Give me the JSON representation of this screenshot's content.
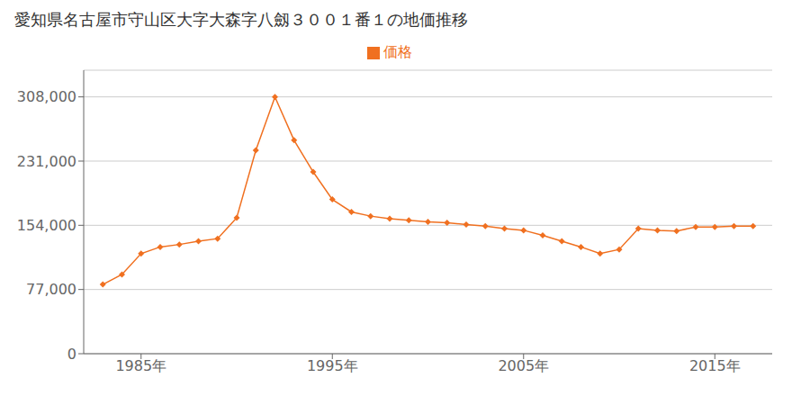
{
  "chart_data": {
    "type": "line",
    "title": "愛知県名古屋市守山区大字大森字八劔３００１番１の地価推移",
    "x": [
      1983,
      1984,
      1985,
      1986,
      1987,
      1988,
      1989,
      1990,
      1991,
      1992,
      1993,
      1994,
      1995,
      1996,
      1997,
      1998,
      1999,
      2000,
      2001,
      2002,
      2003,
      2004,
      2005,
      2006,
      2007,
      2008,
      2009,
      2010,
      2011,
      2012,
      2013,
      2014,
      2015,
      2016,
      2017
    ],
    "series": [
      {
        "name": "価格",
        "color": "#f07020",
        "marker": "diamond",
        "values": [
          83000,
          95000,
          120000,
          128000,
          131000,
          135000,
          138000,
          163000,
          244000,
          308000,
          256000,
          218000,
          185000,
          170000,
          165000,
          162000,
          160000,
          158000,
          157000,
          155000,
          153000,
          150000,
          148000,
          142000,
          135000,
          128000,
          120000,
          125000,
          150000,
          148000,
          147000,
          152000,
          152000,
          153000,
          153000
        ]
      }
    ],
    "xlim": [
      1982,
      2018
    ],
    "xticks": [
      {
        "value": 1985,
        "label": "1985年"
      },
      {
        "value": 1995,
        "label": "1995年"
      },
      {
        "value": 2005,
        "label": "2005年"
      },
      {
        "value": 2015,
        "label": "2015年"
      }
    ],
    "ylim": [
      0,
      340000
    ],
    "yticks": [
      0,
      {
        "value": 77000,
        "label": "77,000"
      },
      {
        "value": 154000,
        "label": "154,000"
      },
      {
        "value": 231000,
        "label": "231,000"
      },
      {
        "value": 308000,
        "label": "308,000"
      }
    ],
    "grid": true,
    "legend": "top"
  }
}
